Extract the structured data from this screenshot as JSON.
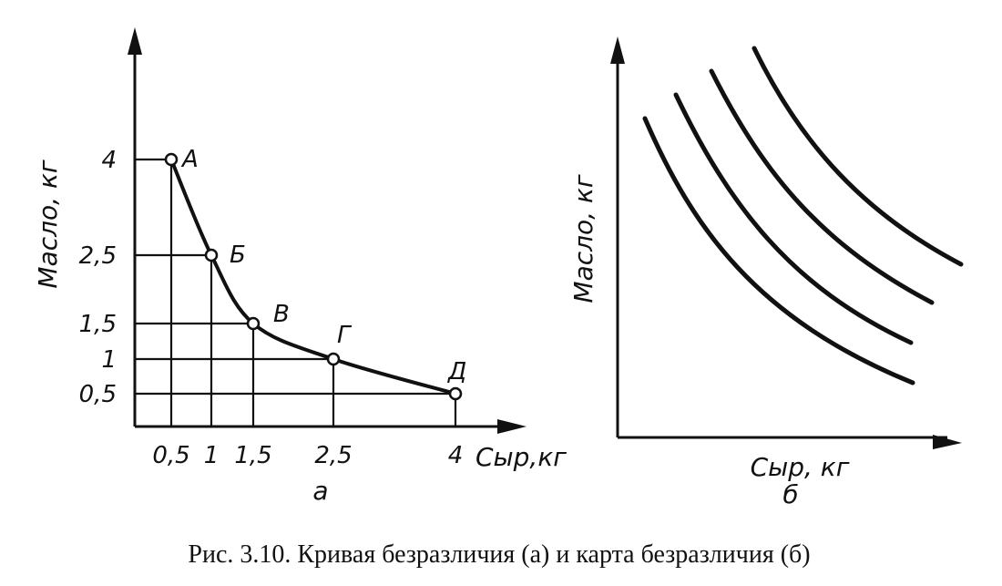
{
  "caption": "Рис. 3.10. Кривая безразличия (а) и карта безразличия (б)",
  "chart_data": [
    {
      "type": "line",
      "panel_label": "а",
      "xlabel": "Сыр,кг",
      "ylabel": "Масло, кг",
      "x_ticks": [
        "0,5",
        "1",
        "1,5",
        "2,5",
        "4"
      ],
      "y_ticks": [
        "4",
        "2,5",
        "1,5",
        "1",
        "0,5"
      ],
      "points": [
        {
          "label": "А",
          "x": 0.5,
          "y": 4
        },
        {
          "label": "Б",
          "x": 1,
          "y": 2.5
        },
        {
          "label": "В",
          "x": 1.5,
          "y": 1.5
        },
        {
          "label": "Г",
          "x": 2.5,
          "y": 1
        },
        {
          "label": "Д",
          "x": 4,
          "y": 0.5
        }
      ],
      "grid": "drop lines from each point to both axes",
      "legend": "none"
    },
    {
      "type": "line",
      "panel_label": "б",
      "xlabel": "Сыр, кг",
      "ylabel": "Масло, кг",
      "series_count": 4,
      "description_visible": "four indifference curves, no tick values",
      "legend": "none"
    }
  ],
  "colors": {
    "ink": "#111111",
    "background": "#ffffff"
  }
}
